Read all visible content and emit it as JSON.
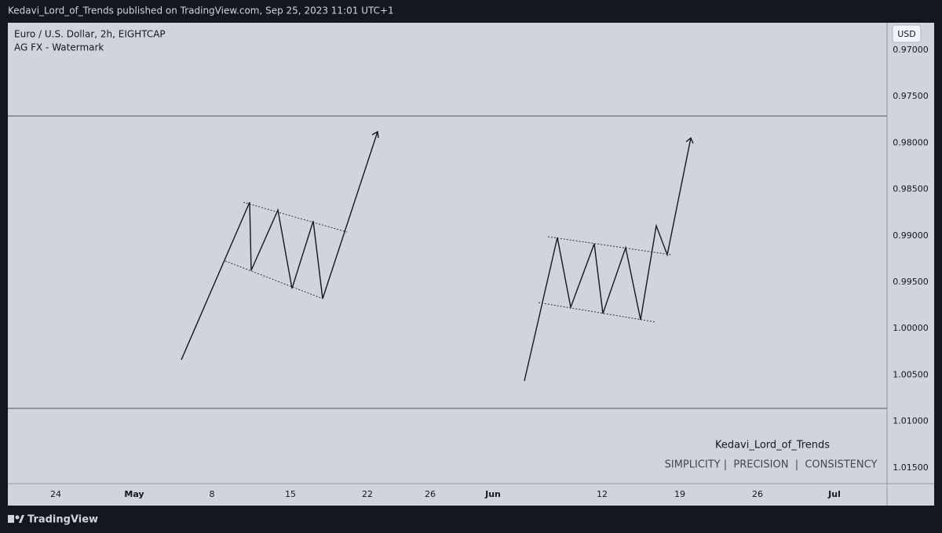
{
  "header": {
    "text": "Kedavi_Lord_of_Trends published on TradingView.com, Sep 25, 2023 11:01 UTC+1"
  },
  "chart": {
    "symbol": "Euro / U.S. Dollar, 2h, EIGHTCAP",
    "indicator": "AG FX - Watermark",
    "currency": "USD"
  },
  "price_axis": [
    "0.97000",
    "0.97500",
    "0.98000",
    "0.98500",
    "0.99000",
    "0.99500",
    "1.00000",
    "1.00500",
    "1.01000",
    "1.01500"
  ],
  "time_axis": [
    "24",
    "May",
    "8",
    "15",
    "22",
    "26",
    "Jun",
    "12",
    "19",
    "26",
    "Jul"
  ],
  "watermark": {
    "name": "Kedavi_Lord_of_Trends",
    "tagline": "SIMPLICITY |  PRECISION  |  CONSISTENCY"
  },
  "footer": {
    "brand": "TradingView"
  }
}
